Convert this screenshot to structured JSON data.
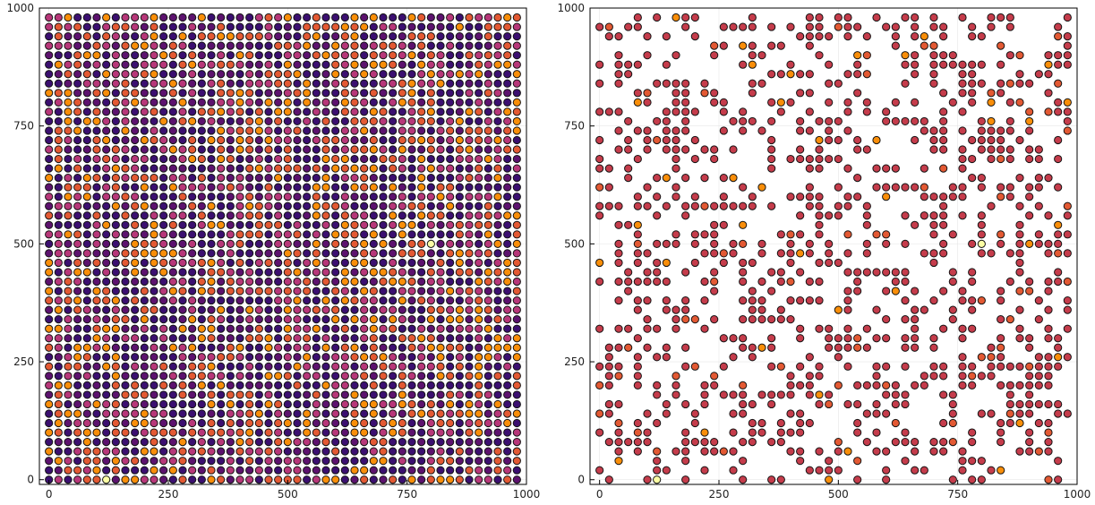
{
  "chart_data": [
    {
      "type": "scatter",
      "grid": true,
      "legend": "none",
      "xlim": [
        -20,
        1000
      ],
      "ylim": [
        -10,
        1000
      ],
      "xticks": [
        0,
        250,
        500,
        750,
        1000
      ],
      "yticks": [
        0,
        250,
        500,
        750,
        1000
      ],
      "grid_x": [
        0,
        20,
        40,
        60,
        80,
        100,
        120,
        140,
        160,
        180,
        200,
        220,
        240,
        260,
        280,
        300,
        320,
        340,
        360,
        380,
        400,
        420,
        440,
        460,
        480,
        500,
        520,
        540,
        560,
        580,
        600,
        620,
        640,
        660,
        680,
        700,
        720,
        740,
        760,
        780,
        800,
        820,
        840,
        860,
        880,
        900,
        920,
        940,
        960,
        980
      ],
      "grid_y": [
        0,
        20,
        40,
        60,
        80,
        100,
        120,
        140,
        160,
        180,
        200,
        220,
        240,
        260,
        280,
        300,
        320,
        340,
        360,
        380,
        400,
        420,
        440,
        460,
        480,
        500,
        520,
        540,
        560,
        580,
        600,
        620,
        640,
        660,
        680,
        700,
        720,
        740,
        760,
        780,
        800,
        820,
        840,
        860,
        880,
        900,
        920,
        940,
        960,
        980
      ],
      "marker_colors": [
        "#3b0f70",
        "#5c126e",
        "#b73779",
        "#e35933",
        "#f98e09",
        "#fcffa4"
      ],
      "sampled_points": [
        {
          "x": 120,
          "y": 0,
          "color": "#fcffa4"
        },
        {
          "x": 800,
          "y": 500,
          "color": "#fcffa4"
        },
        {
          "x": 980,
          "y": 800,
          "color": "#f98e09"
        }
      ]
    },
    {
      "type": "scatter",
      "grid": true,
      "legend": "none",
      "xlim": [
        -20,
        1000
      ],
      "ylim": [
        -10,
        1000
      ],
      "xticks": [
        0,
        250,
        500,
        750,
        1000
      ],
      "yticks": [
        0,
        250,
        500,
        750,
        1000
      ],
      "grid_x": [
        0,
        20,
        40,
        60,
        80,
        100,
        120,
        140,
        160,
        180,
        200,
        220,
        240,
        260,
        280,
        300,
        320,
        340,
        360,
        380,
        400,
        420,
        440,
        460,
        480,
        500,
        520,
        540,
        560,
        580,
        600,
        620,
        640,
        660,
        680,
        700,
        720,
        740,
        760,
        780,
        800,
        820,
        840,
        860,
        880,
        900,
        920,
        940,
        960,
        980
      ],
      "grid_y": [
        0,
        20,
        40,
        60,
        80,
        100,
        120,
        140,
        160,
        180,
        200,
        220,
        240,
        260,
        280,
        300,
        320,
        340,
        360,
        380,
        400,
        420,
        440,
        460,
        480,
        500,
        520,
        540,
        560,
        580,
        600,
        620,
        640,
        660,
        680,
        700,
        720,
        740,
        760,
        780,
        800,
        820,
        840,
        860,
        880,
        900,
        920,
        940,
        960,
        980
      ],
      "marker_colors": [
        "#c53c4b",
        "#e35933",
        "#f98e09",
        "#fcffa4"
      ],
      "point_fraction": 0.4,
      "sampled_points": [
        {
          "x": 120,
          "y": 0,
          "color": "#fcffa4"
        },
        {
          "x": 800,
          "y": 500,
          "color": "#fcffa4"
        },
        {
          "x": 980,
          "y": 800,
          "color": "#f98e09"
        }
      ]
    }
  ]
}
